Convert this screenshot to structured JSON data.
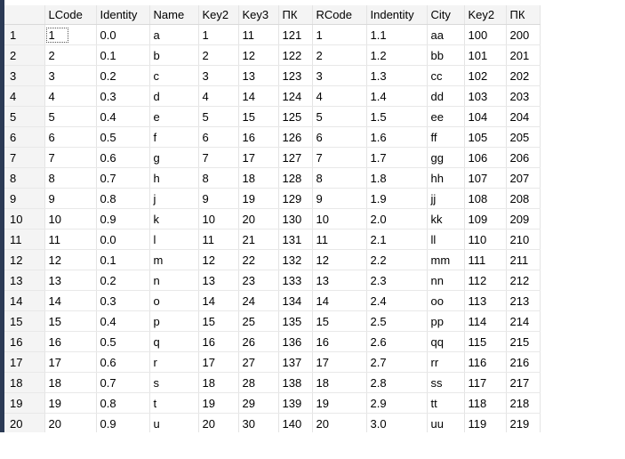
{
  "grid": {
    "columns": [
      "",
      "LCode",
      "Identity",
      "Name",
      "Key2",
      "Key3",
      "ПК",
      "RCode",
      "Indentity",
      "City",
      "Key2",
      "ПК"
    ],
    "rows": [
      [
        "1",
        "1",
        "0.0",
        "a",
        "1",
        "11",
        "121",
        "1",
        "1.1",
        "aa",
        "100",
        "200"
      ],
      [
        "2",
        "2",
        "0.1",
        "b",
        "2",
        "12",
        "122",
        "2",
        "1.2",
        "bb",
        "101",
        "201"
      ],
      [
        "3",
        "3",
        "0.2",
        "c",
        "3",
        "13",
        "123",
        "3",
        "1.3",
        "cc",
        "102",
        "202"
      ],
      [
        "4",
        "4",
        "0.3",
        "d",
        "4",
        "14",
        "124",
        "4",
        "1.4",
        "dd",
        "103",
        "203"
      ],
      [
        "5",
        "5",
        "0.4",
        "e",
        "5",
        "15",
        "125",
        "5",
        "1.5",
        "ee",
        "104",
        "204"
      ],
      [
        "6",
        "6",
        "0.5",
        "f",
        "6",
        "16",
        "126",
        "6",
        "1.6",
        "ff",
        "105",
        "205"
      ],
      [
        "7",
        "7",
        "0.6",
        "g",
        "7",
        "17",
        "127",
        "7",
        "1.7",
        "gg",
        "106",
        "206"
      ],
      [
        "8",
        "8",
        "0.7",
        "h",
        "8",
        "18",
        "128",
        "8",
        "1.8",
        "hh",
        "107",
        "207"
      ],
      [
        "9",
        "9",
        "0.8",
        "j",
        "9",
        "19",
        "129",
        "9",
        "1.9",
        "jj",
        "108",
        "208"
      ],
      [
        "10",
        "10",
        "0.9",
        "k",
        "10",
        "20",
        "130",
        "10",
        "2.0",
        "kk",
        "109",
        "209"
      ],
      [
        "11",
        "11",
        "0.0",
        "l",
        "11",
        "21",
        "131",
        "11",
        "2.1",
        "ll",
        "110",
        "210"
      ],
      [
        "12",
        "12",
        "0.1",
        "m",
        "12",
        "22",
        "132",
        "12",
        "2.2",
        "mm",
        "111",
        "211"
      ],
      [
        "13",
        "13",
        "0.2",
        "n",
        "13",
        "23",
        "133",
        "13",
        "2.3",
        "nn",
        "112",
        "212"
      ],
      [
        "14",
        "14",
        "0.3",
        "o",
        "14",
        "24",
        "134",
        "14",
        "2.4",
        "oo",
        "113",
        "213"
      ],
      [
        "15",
        "15",
        "0.4",
        "p",
        "15",
        "25",
        "135",
        "15",
        "2.5",
        "pp",
        "114",
        "214"
      ],
      [
        "16",
        "16",
        "0.5",
        "q",
        "16",
        "26",
        "136",
        "16",
        "2.6",
        "qq",
        "115",
        "215"
      ],
      [
        "17",
        "17",
        "0.6",
        "r",
        "17",
        "27",
        "137",
        "17",
        "2.7",
        "rr",
        "116",
        "216"
      ],
      [
        "18",
        "18",
        "0.7",
        "s",
        "18",
        "28",
        "138",
        "18",
        "2.8",
        "ss",
        "117",
        "217"
      ],
      [
        "19",
        "19",
        "0.8",
        "t",
        "19",
        "29",
        "139",
        "19",
        "2.9",
        "tt",
        "118",
        "218"
      ],
      [
        "20",
        "20",
        "0.9",
        "u",
        "20",
        "30",
        "140",
        "20",
        "3.0",
        "uu",
        "119",
        "219"
      ]
    ]
  }
}
